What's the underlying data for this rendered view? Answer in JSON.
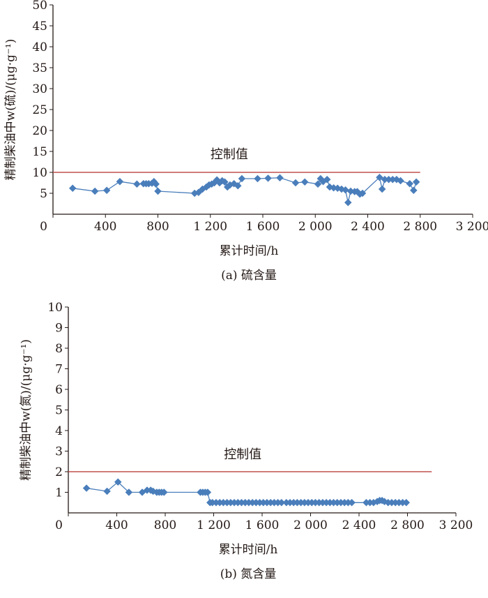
{
  "chart_data": [
    {
      "type": "line",
      "caption": "(a) 硫含量",
      "xlabel": "累计时间/h",
      "ylabel": "精制柴油中w(硫)/(μg·g⁻¹)",
      "xlim": [
        0,
        3200
      ],
      "ylim": [
        0,
        50
      ],
      "xticks": [
        0,
        400,
        800,
        1200,
        1600,
        2000,
        2400,
        2800,
        3200
      ],
      "xtick_labels": [
        "0",
        "400",
        "800",
        "1 200",
        "1 600",
        "2 000",
        "2 400",
        "2 800",
        "3 200"
      ],
      "yticks": [
        5,
        10,
        15,
        20,
        25,
        30,
        35,
        40,
        45,
        50
      ],
      "ytick_labels": [
        "5",
        "10",
        "15",
        "20",
        "25",
        "30",
        "35",
        "40",
        "45",
        "50"
      ],
      "origin_label": "0",
      "grid": false,
      "series": [
        {
          "color": "#4a7ebb",
          "marker": "diamond",
          "x": [
            150,
            320,
            410,
            510,
            640,
            690,
            710,
            730,
            755,
            770,
            785,
            800,
            1080,
            1110,
            1140,
            1170,
            1190,
            1210,
            1230,
            1250,
            1270,
            1290,
            1310,
            1330,
            1350,
            1380,
            1410,
            1440,
            1560,
            1640,
            1730,
            1850,
            1920,
            2020,
            2040,
            2060,
            2090,
            2110,
            2140,
            2170,
            2200,
            2230,
            2250,
            2270,
            2300,
            2320,
            2340,
            2360,
            2490,
            2510,
            2530,
            2560,
            2590,
            2620,
            2650,
            2720,
            2750,
            2770
          ],
          "y": [
            6.2,
            5.5,
            5.7,
            7.8,
            7.2,
            7.3,
            7.3,
            7.3,
            7.4,
            7.8,
            7.2,
            5.5,
            5.0,
            5.2,
            6.0,
            6.5,
            7.0,
            7.2,
            7.5,
            8.2,
            7.5,
            8.0,
            7.7,
            6.5,
            7.0,
            7.3,
            6.8,
            8.5,
            8.5,
            8.6,
            8.7,
            7.5,
            7.7,
            7.2,
            8.5,
            7.8,
            8.3,
            6.5,
            6.3,
            6.2,
            6.0,
            5.8,
            2.8,
            5.5,
            5.4,
            5.4,
            4.8,
            5.0,
            8.8,
            6.0,
            8.3,
            8.3,
            8.3,
            8.3,
            8.0,
            7.3,
            5.7,
            7.7
          ]
        }
      ],
      "reference_line": {
        "label": "控制值",
        "y": 10,
        "x_range": [
          0,
          2800
        ],
        "color": "#c0504d"
      }
    },
    {
      "type": "line",
      "caption": "(b) 氮含量",
      "xlabel": "累计时间/h",
      "ylabel": "精制柴油中w(氮)/(μg·g⁻¹)",
      "xlim": [
        0,
        3200
      ],
      "ylim": [
        0,
        10
      ],
      "xticks": [
        0,
        400,
        800,
        1200,
        1600,
        2000,
        2400,
        2800,
        3200
      ],
      "xtick_labels": [
        "0",
        "400",
        "800",
        "1 200",
        "1 600",
        "2 000",
        "2 400",
        "2 800",
        "3 200"
      ],
      "yticks": [
        1,
        2,
        3,
        4,
        5,
        6,
        7,
        8,
        9,
        10
      ],
      "ytick_labels": [
        "1",
        "2",
        "3",
        "4",
        "5",
        "6",
        "7",
        "8",
        "9",
        "10"
      ],
      "origin_label": "0",
      "grid": false,
      "series": [
        {
          "color": "#4a7ebb",
          "marker": "diamond",
          "x": [
            150,
            320,
            410,
            500,
            610,
            650,
            680,
            700,
            730,
            750,
            770,
            790,
            1090,
            1110,
            1130,
            1150,
            1170,
            1190,
            1220,
            1250,
            1280,
            1310,
            1340,
            1370,
            1400,
            1430,
            1460,
            1490,
            1520,
            1550,
            1580,
            1610,
            1640,
            1670,
            1700,
            1730,
            1760,
            1800,
            1830,
            1860,
            1890,
            1920,
            1950,
            1980,
            2010,
            2040,
            2070,
            2100,
            2130,
            2160,
            2190,
            2220,
            2250,
            2280,
            2310,
            2340,
            2460,
            2490,
            2520,
            2550,
            2570,
            2590,
            2610,
            2640,
            2670,
            2700,
            2730,
            2760,
            2790
          ],
          "y": [
            1.2,
            1.05,
            1.5,
            1.0,
            1.0,
            1.1,
            1.1,
            1.05,
            1.0,
            1.0,
            1.0,
            1.0,
            1.0,
            1.0,
            1.0,
            1.0,
            0.5,
            0.5,
            0.5,
            0.5,
            0.5,
            0.5,
            0.5,
            0.5,
            0.5,
            0.5,
            0.5,
            0.5,
            0.5,
            0.5,
            0.5,
            0.5,
            0.5,
            0.5,
            0.5,
            0.5,
            0.5,
            0.5,
            0.5,
            0.5,
            0.5,
            0.5,
            0.5,
            0.5,
            0.5,
            0.5,
            0.5,
            0.5,
            0.5,
            0.5,
            0.5,
            0.5,
            0.5,
            0.5,
            0.5,
            0.5,
            0.5,
            0.5,
            0.5,
            0.55,
            0.6,
            0.6,
            0.55,
            0.5,
            0.5,
            0.5,
            0.5,
            0.5,
            0.5
          ]
        }
      ],
      "reference_line": {
        "label": "控制值",
        "y": 2,
        "x_range": [
          0,
          3000
        ],
        "color": "#c0504d"
      }
    }
  ]
}
